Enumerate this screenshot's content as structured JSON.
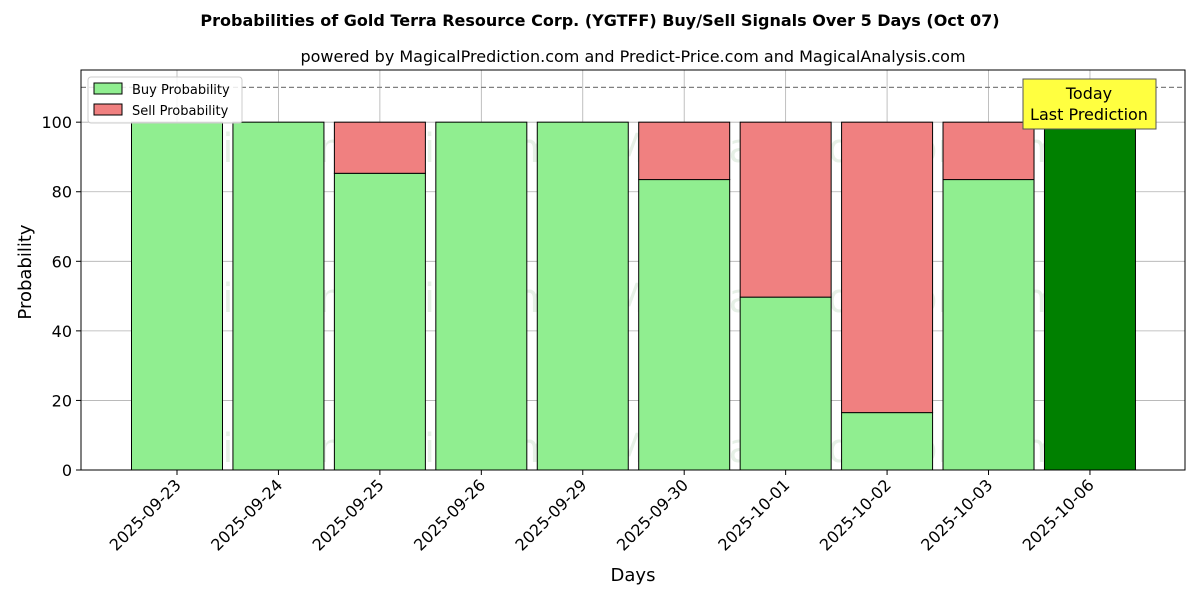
{
  "chart_data": {
    "type": "bar",
    "title": "Probabilities of Gold Terra Resource Corp. (YGTFF) Buy/Sell Signals Over 5 Days (Oct 07)",
    "subtitle": "powered by MagicalPrediction.com and Predict-Price.com and MagicalAnalysis.com",
    "xlabel": "Days",
    "ylabel": "Probability",
    "ylim": [
      0,
      115
    ],
    "yticks": [
      0,
      20,
      40,
      60,
      80,
      100
    ],
    "grid": true,
    "stacked": true,
    "categories": [
      "2025-09-23",
      "2025-09-24",
      "2025-09-25",
      "2025-09-26",
      "2025-09-29",
      "2025-09-30",
      "2025-10-01",
      "2025-10-02",
      "2025-10-03",
      "2025-10-06"
    ],
    "series": [
      {
        "name": "Buy Probability",
        "color": "#90ee90",
        "values": [
          100,
          100,
          85.3,
          100,
          100,
          83.5,
          49.7,
          16.5,
          83.5,
          100
        ]
      },
      {
        "name": "Sell Probability",
        "color": "#f08080",
        "values": [
          0,
          0,
          14.7,
          0,
          0,
          16.5,
          50.3,
          83.5,
          16.5,
          0
        ]
      }
    ],
    "highlight": {
      "category": "2025-10-06",
      "color": "#008000"
    },
    "reference_line": {
      "y": 110,
      "style": "dashed"
    },
    "legend": {
      "position": "top-left"
    },
    "annotation": {
      "lines": [
        "Today",
        "Last Prediction"
      ],
      "background": "#ffff40"
    },
    "watermarks": [
      "MagicalAnalysis.com",
      "MagicalPrediction.com"
    ]
  }
}
